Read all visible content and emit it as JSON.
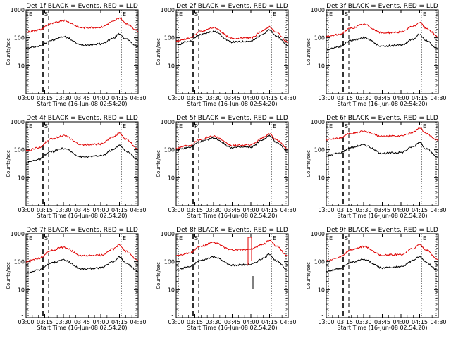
{
  "chart_data": [
    {
      "panel": "1f",
      "title": "Det 1f  BLACK = Events, RED = LLD",
      "type": "line",
      "log_y": true,
      "ylim": [
        1,
        1000
      ],
      "xlabel": "Start Time (16-Jun-08 02:54:20)",
      "ylabel": "Counts/sec",
      "x_ticks": [
        "03:00",
        "03:15",
        "03:30",
        "03:45",
        "04:00",
        "04:15",
        "04:30"
      ],
      "y_ticks": [
        "1",
        "10",
        "100",
        "1000"
      ],
      "markers": [
        "E",
        "S",
        "E"
      ],
      "series": [
        {
          "color": "#000000",
          "x": [
            "03:00",
            "03:10",
            "03:20",
            "03:30",
            "03:45",
            "04:00",
            "04:10",
            "04:15",
            "04:20",
            "04:30"
          ],
          "y": [
            42,
            50,
            80,
            110,
            55,
            60,
            95,
            140,
            90,
            48
          ]
        },
        {
          "color": "#e00000",
          "x": [
            "03:00",
            "03:10",
            "03:20",
            "03:30",
            "03:45",
            "04:00",
            "04:10",
            "04:15",
            "04:20",
            "04:30"
          ],
          "y": [
            160,
            190,
            320,
            420,
            230,
            240,
            380,
            520,
            330,
            180
          ]
        }
      ]
    },
    {
      "panel": "2f",
      "title": "Det 2f  BLACK = Events, RED = LLD",
      "type": "line",
      "log_y": true,
      "ylim": [
        1,
        1000
      ],
      "xlabel": "Start Time (16-Jun-08 02:54:20)",
      "ylabel": "Counts/sec",
      "x_ticks": [
        "03:00",
        "03:15",
        "03:30",
        "03:45",
        "04:00",
        "04:15",
        "04:30"
      ],
      "y_ticks": [
        "1",
        "10",
        "100",
        "1000"
      ],
      "markers": [
        "E",
        "S",
        "E"
      ],
      "series": [
        {
          "color": "#000000",
          "x": [
            "03:00",
            "03:10",
            "03:20",
            "03:30",
            "03:45",
            "04:00",
            "04:10",
            "04:15",
            "04:20",
            "04:30"
          ],
          "y": [
            55,
            75,
            130,
            170,
            70,
            75,
            140,
            190,
            120,
            55
          ]
        },
        {
          "color": "#e00000",
          "x": [
            "03:00",
            "03:10",
            "03:20",
            "03:30",
            "03:45",
            "04:00",
            "04:10",
            "04:15",
            "04:20",
            "04:30"
          ],
          "y": [
            75,
            95,
            170,
            230,
            95,
            100,
            180,
            250,
            160,
            70
          ]
        }
      ]
    },
    {
      "panel": "3f",
      "title": "Det 3f  BLACK = Events, RED = LLD",
      "type": "line",
      "log_y": true,
      "ylim": [
        1,
        1000
      ],
      "xlabel": "Start Time (16-Jun-08 02:54:20)",
      "ylabel": "Counts/sec",
      "x_ticks": [
        "03:00",
        "03:15",
        "03:30",
        "03:45",
        "04:00",
        "04:15",
        "04:30"
      ],
      "y_ticks": [
        "1",
        "10",
        "100",
        "1000"
      ],
      "markers": [
        "E",
        "S",
        "E"
      ],
      "series": [
        {
          "color": "#000000",
          "x": [
            "03:00",
            "03:10",
            "03:20",
            "03:30",
            "03:45",
            "04:00",
            "04:10",
            "04:15",
            "04:20",
            "04:30"
          ],
          "y": [
            38,
            48,
            80,
            100,
            50,
            55,
            90,
            135,
            80,
            40
          ]
        },
        {
          "color": "#e00000",
          "x": [
            "03:00",
            "03:10",
            "03:20",
            "03:30",
            "03:45",
            "04:00",
            "04:10",
            "04:15",
            "04:20",
            "04:30"
          ],
          "y": [
            110,
            130,
            220,
            300,
            150,
            160,
            260,
            360,
            220,
            110
          ]
        }
      ]
    },
    {
      "panel": "4f",
      "title": "Det 4f  BLACK = Events, RED = LLD",
      "type": "line",
      "log_y": true,
      "ylim": [
        1,
        1000
      ],
      "xlabel": "Start Time (16-Jun-08 02:54:20)",
      "ylabel": "Counts/sec",
      "x_ticks": [
        "03:00",
        "03:15",
        "03:30",
        "03:45",
        "04:00",
        "04:15",
        "04:30"
      ],
      "y_ticks": [
        "1",
        "10",
        "100",
        "1000"
      ],
      "markers": [
        "E",
        "S",
        "E"
      ],
      "series": [
        {
          "color": "#000000",
          "x": [
            "03:00",
            "03:10",
            "03:20",
            "03:30",
            "03:45",
            "04:00",
            "04:10",
            "04:15",
            "04:20",
            "04:30"
          ],
          "y": [
            35,
            45,
            85,
            110,
            55,
            60,
            100,
            150,
            90,
            45
          ]
        },
        {
          "color": "#e00000",
          "x": [
            "03:00",
            "03:10",
            "03:20",
            "03:30",
            "03:45",
            "04:00",
            "04:10",
            "04:15",
            "04:20",
            "04:30"
          ],
          "y": [
            90,
            120,
            240,
            320,
            150,
            160,
            280,
            400,
            240,
            110
          ]
        }
      ]
    },
    {
      "panel": "5f",
      "title": "Det 5f  BLACK = Events, RED = LLD",
      "type": "line",
      "log_y": true,
      "ylim": [
        1,
        1000
      ],
      "xlabel": "Start Time (16-Jun-08 02:54:20)",
      "ylabel": "Counts/sec",
      "x_ticks": [
        "03:00",
        "03:15",
        "03:30",
        "03:45",
        "04:00",
        "04:15",
        "04:30"
      ],
      "y_ticks": [
        "1",
        "10",
        "100",
        "1000"
      ],
      "markers": [
        "E",
        "P",
        "E"
      ],
      "series": [
        {
          "color": "#000000",
          "x": [
            "03:00",
            "03:10",
            "03:20",
            "03:30",
            "03:45",
            "04:00",
            "04:10",
            "04:15",
            "04:20",
            "04:30"
          ],
          "y": [
            95,
            120,
            200,
            260,
            120,
            125,
            230,
            320,
            190,
            90
          ]
        },
        {
          "color": "#e00000",
          "x": [
            "03:00",
            "03:10",
            "03:20",
            "03:30",
            "03:45",
            "04:00",
            "04:10",
            "04:15",
            "04:20",
            "04:30"
          ],
          "y": [
            115,
            145,
            240,
            310,
            140,
            150,
            270,
            380,
            230,
            110
          ]
        }
      ]
    },
    {
      "panel": "6f",
      "title": "Det 6f  BLACK = Events, RED = LLD",
      "type": "line",
      "log_y": true,
      "ylim": [
        1,
        1000
      ],
      "xlabel": "Start Time (16-Jun-08 02:54:20)",
      "ylabel": "Counts/sec",
      "x_ticks": [
        "03:00",
        "03:15",
        "03:30",
        "03:45",
        "04:00",
        "04:15",
        "04:30"
      ],
      "y_ticks": [
        "1",
        "10",
        "100",
        "1000"
      ],
      "markers": [
        "E",
        "S",
        "E"
      ],
      "series": [
        {
          "color": "#000000",
          "x": [
            "03:00",
            "03:10",
            "03:20",
            "03:30",
            "03:45",
            "04:00",
            "04:10",
            "04:15",
            "04:20",
            "04:30"
          ],
          "y": [
            60,
            75,
            120,
            150,
            75,
            80,
            130,
            190,
            110,
            55
          ]
        },
        {
          "color": "#e00000",
          "x": [
            "03:00",
            "03:10",
            "03:20",
            "03:30",
            "03:45",
            "04:00",
            "04:10",
            "04:15",
            "04:20",
            "04:30"
          ],
          "y": [
            230,
            260,
            380,
            460,
            300,
            310,
            420,
            600,
            380,
            220
          ]
        }
      ]
    },
    {
      "panel": "7f",
      "title": "Det 7f  BLACK = Events, RED = LLD",
      "type": "line",
      "log_y": true,
      "ylim": [
        1,
        1000
      ],
      "xlabel": "Start Time (16-Jun-08 02:54:20)",
      "ylabel": "Counts/sec",
      "x_ticks": [
        "03:00",
        "03:15",
        "03:30",
        "03:45",
        "04:00",
        "04:15",
        "04:30"
      ],
      "y_ticks": [
        "1",
        "10",
        "100",
        "1000"
      ],
      "markers": [
        "E",
        "S",
        "E"
      ],
      "series": [
        {
          "color": "#000000",
          "x": [
            "03:00",
            "03:10",
            "03:20",
            "03:30",
            "03:45",
            "04:00",
            "04:10",
            "04:15",
            "04:20",
            "04:30"
          ],
          "y": [
            40,
            50,
            90,
            115,
            55,
            60,
            100,
            150,
            90,
            45
          ]
        },
        {
          "color": "#e00000",
          "x": [
            "03:00",
            "03:10",
            "03:20",
            "03:30",
            "03:45",
            "04:00",
            "04:10",
            "04:15",
            "04:20",
            "04:30"
          ],
          "y": [
            100,
            130,
            250,
            330,
            160,
            170,
            280,
            400,
            240,
            110
          ]
        }
      ]
    },
    {
      "panel": "8f",
      "title": "Det 8f  BLACK = Events, RED = LLD",
      "type": "line",
      "log_y": true,
      "ylim": [
        1,
        1000
      ],
      "xlabel": "Start Time (16-Jun-08 02:54:20)",
      "ylabel": "Counts/sec",
      "x_ticks": [
        "03:00",
        "03:15",
        "03:30",
        "03:45",
        "04:00",
        "04:15",
        "04:30"
      ],
      "y_ticks": [
        "1",
        "10",
        "100",
        "1000"
      ],
      "markers": [
        "E",
        "S",
        "E"
      ],
      "series": [
        {
          "color": "#000000",
          "x": [
            "03:00",
            "03:10",
            "03:20",
            "03:30",
            "03:45",
            "04:00",
            "04:10",
            "04:15",
            "04:20",
            "04:30"
          ],
          "y": [
            50,
            65,
            110,
            150,
            75,
            80,
            130,
            190,
            110,
            50
          ]
        },
        {
          "color": "#e00000",
          "x": [
            "03:00",
            "03:10",
            "03:20",
            "03:30",
            "03:45",
            "04:00",
            "04:10",
            "04:15",
            "04:20",
            "04:30"
          ],
          "y": [
            170,
            200,
            360,
            480,
            260,
            280,
            420,
            600,
            360,
            160
          ]
        }
      ]
    },
    {
      "panel": "9f",
      "title": "Det 9f  BLACK = Events, RED = LLD",
      "type": "line",
      "log_y": true,
      "ylim": [
        1,
        1000
      ],
      "xlabel": "Start Time (16-Jun-08 02:54:20)",
      "ylabel": "Counts/sec",
      "x_ticks": [
        "03:00",
        "03:15",
        "03:30",
        "03:45",
        "04:00",
        "04:15",
        "04:30"
      ],
      "y_ticks": [
        "1",
        "10",
        "100",
        "1000"
      ],
      "markers": [
        "E",
        "S",
        "E"
      ],
      "series": [
        {
          "color": "#000000",
          "x": [
            "03:00",
            "03:10",
            "03:20",
            "03:30",
            "03:45",
            "04:00",
            "04:10",
            "04:15",
            "04:20",
            "04:30"
          ],
          "y": [
            45,
            55,
            95,
            120,
            60,
            65,
            110,
            160,
            95,
            48
          ]
        },
        {
          "color": "#e00000",
          "x": [
            "03:00",
            "03:10",
            "03:20",
            "03:30",
            "03:45",
            "04:00",
            "04:10",
            "04:15",
            "04:20",
            "04:30"
          ],
          "y": [
            110,
            140,
            270,
            350,
            170,
            180,
            300,
            420,
            260,
            120
          ]
        }
      ]
    }
  ]
}
